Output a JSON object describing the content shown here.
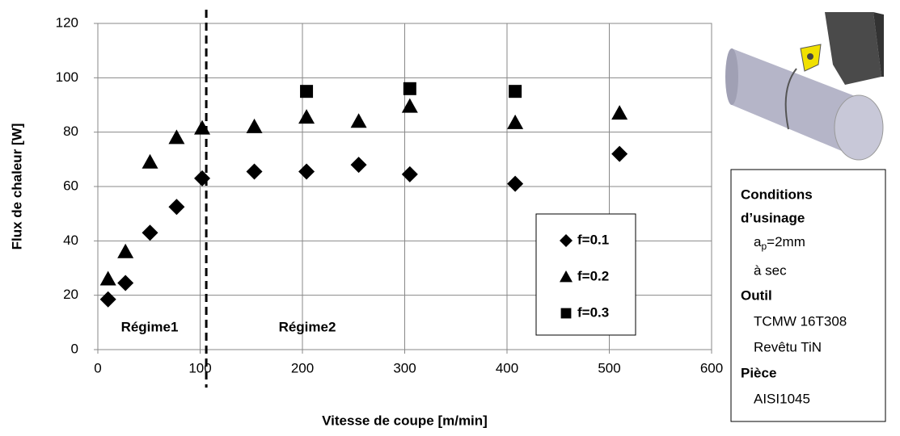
{
  "chart_data": {
    "type": "scatter",
    "xlabel": "Vitesse de coupe [m/min]",
    "ylabel": "Flux de chaleur [W]",
    "xlim": [
      0,
      600
    ],
    "xticks": [
      0,
      100,
      200,
      300,
      400,
      500,
      600
    ],
    "ylim": [
      0,
      120
    ],
    "yticks": [
      0,
      20,
      40,
      60,
      80,
      100,
      120
    ],
    "grid": true,
    "vlines": [
      106
    ],
    "annotations": [
      "Régime1",
      "Régime2"
    ],
    "series": [
      {
        "name": "f=0.1",
        "color": "#000000",
        "marker": "diamond",
        "x": [
          10,
          27,
          51,
          77,
          102,
          153,
          204,
          255,
          305,
          408,
          510
        ],
        "values": [
          18.5,
          24.5,
          43,
          52.5,
          63,
          65.5,
          65.5,
          68,
          64.5,
          61,
          72
        ]
      },
      {
        "name": "f=0.2",
        "color": "#000000",
        "marker": "triangle",
        "x": [
          10,
          27,
          51,
          77,
          102,
          153,
          204,
          255,
          305,
          408,
          510
        ],
        "values": [
          26,
          36,
          69,
          78,
          81.5,
          82,
          85.5,
          84,
          89.5,
          83.5,
          87
        ]
      },
      {
        "name": "f=0.3",
        "color": "#000000",
        "marker": "square",
        "x": [
          204,
          305,
          408
        ],
        "values": [
          95,
          96,
          95
        ]
      }
    ]
  },
  "conditions": {
    "heading1": "Conditions",
    "heading2": "d’usinage",
    "ap_a": "a",
    "ap_sub": "p",
    "ap_rest": "=2mm",
    "dry": "à sec",
    "tool_heading": "Outil",
    "tool_ref": "TCMW 16T308",
    "coating": "Revêtu TiN",
    "part_heading": "Pièce",
    "part_ref": "AISI1045"
  }
}
